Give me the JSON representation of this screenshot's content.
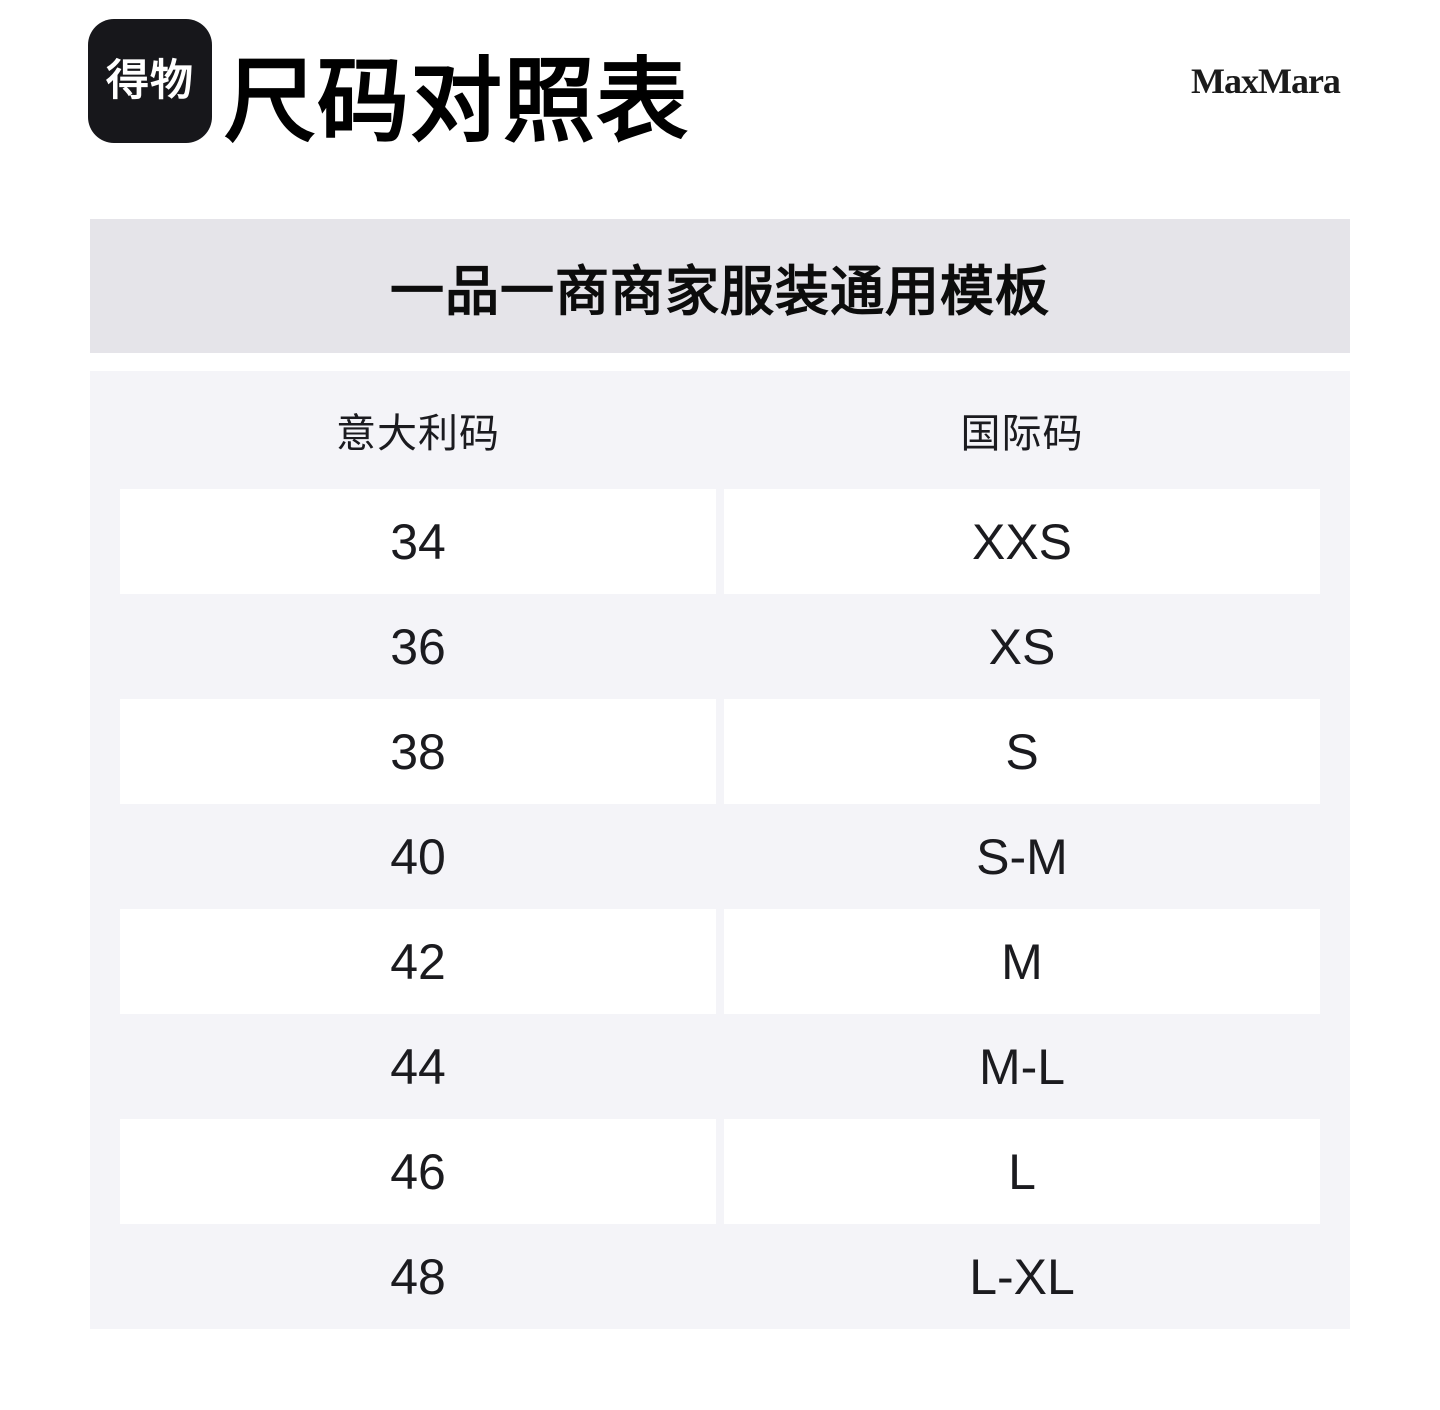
{
  "header": {
    "logo_text": "得物",
    "title": "尺码对照表",
    "brand": "MaxMara"
  },
  "banner": {
    "text": "一品一商商家服装通用模板"
  },
  "table": {
    "columns": [
      "意大利码",
      "国际码"
    ],
    "rows": [
      {
        "italian": "34",
        "international": "XXS"
      },
      {
        "italian": "36",
        "international": "XS"
      },
      {
        "italian": "38",
        "international": "S"
      },
      {
        "italian": "40",
        "international": "S-M"
      },
      {
        "italian": "42",
        "international": "M"
      },
      {
        "italian": "44",
        "international": "M-L"
      },
      {
        "italian": "46",
        "international": "L"
      },
      {
        "italian": "48",
        "international": "L-XL"
      }
    ]
  },
  "colors": {
    "logo_background": "#17171b",
    "banner_background": "#e5e4e9",
    "table_background": "#f4f4f8",
    "row_background": "#ffffff",
    "text": "#1b1b1f"
  }
}
